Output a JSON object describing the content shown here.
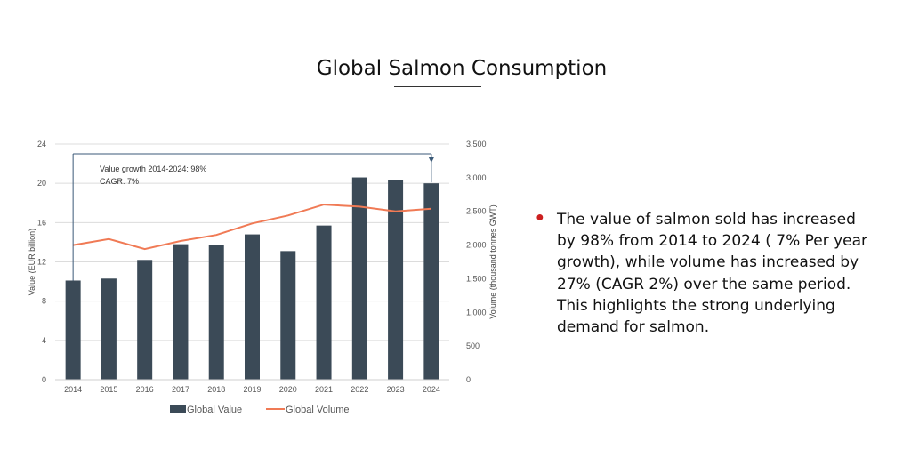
{
  "slide": {
    "title": "Global Salmon Consumption",
    "bullet": "The value of salmon sold has increased by 98% from 2014 to 2024 ( 7% Per year growth), while volume has increased by 27% (CAGR 2%) over the same period. This highlights the strong underlying demand for salmon.",
    "bullet_color": "#cc1f1f"
  },
  "chart_data": {
    "type": "bar",
    "title": "",
    "categories": [
      "2014",
      "2015",
      "2016",
      "2017",
      "2018",
      "2019",
      "2020",
      "2021",
      "2022",
      "2023",
      "2024"
    ],
    "series": [
      {
        "name": "Global Value",
        "type": "bar",
        "axis": "left",
        "color": "#3b4a57",
        "values": [
          10.1,
          10.3,
          12.2,
          13.8,
          13.7,
          14.8,
          13.1,
          15.7,
          20.6,
          20.3,
          20.0
        ]
      },
      {
        "name": "Global Volume",
        "type": "line",
        "axis": "right",
        "color": "#f07a55",
        "values": [
          2000,
          2090,
          1940,
          2060,
          2150,
          2320,
          2440,
          2600,
          2570,
          2500,
          2540
        ]
      }
    ],
    "ylabel": "Value (EUR billion)",
    "y2label": "Volume (thousand tonnes GWT)",
    "ylim": [
      0,
      24
    ],
    "y2lim": [
      0,
      3500
    ],
    "yticks": [
      "0",
      "4",
      "8",
      "12",
      "16",
      "20",
      "24"
    ],
    "y2ticks": [
      "0",
      "500",
      "1,000",
      "1,500",
      "2,000",
      "2,500",
      "3,000",
      "3,500"
    ],
    "grid": true,
    "legend_position": "bottom",
    "annotation": {
      "line1": "Value growth 2014-2024: 98%",
      "line2": "CAGR: 7%"
    }
  }
}
